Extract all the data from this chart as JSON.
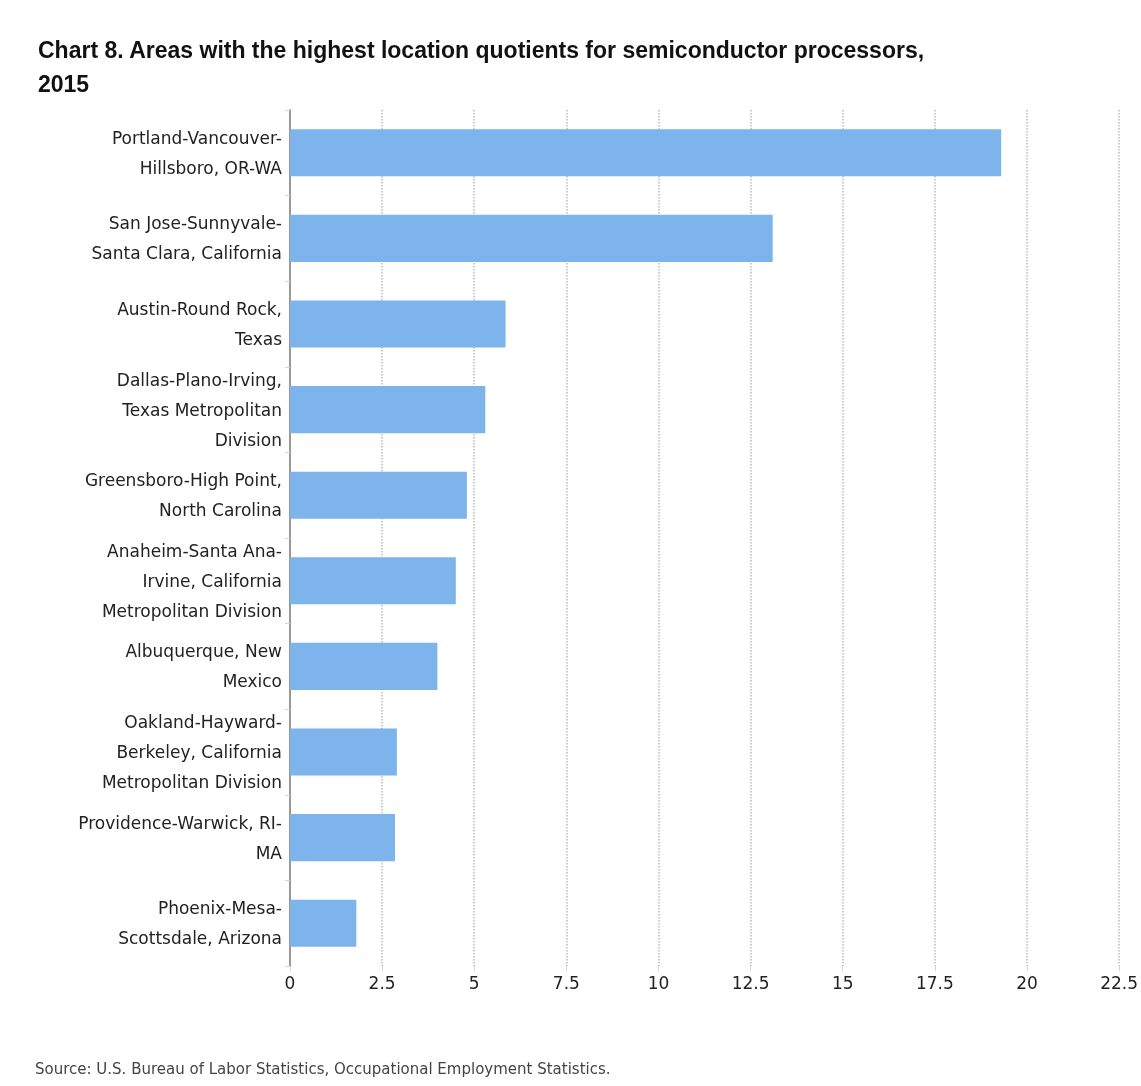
{
  "chart_data": {
    "type": "bar",
    "orientation": "horizontal",
    "title": "Chart 8. Areas with the highest location quotients for semiconductor processors, 2015",
    "categories": [
      "Portland-Vancouver-Hillsboro, OR-WA",
      "San Jose-Sunnyvale-Santa Clara, California",
      "Austin-Round Rock, Texas",
      "Dallas-Plano-Irving, Texas Metropolitan Division",
      "Greensboro-High Point, North Carolina",
      "Anaheim-Santa Ana-Irvine, California Metropolitan Division",
      "Albuquerque, New Mexico",
      "Oakland-Hayward-Berkeley, California Metropolitan Division",
      "Providence-Warwick, RI-MA",
      "Phoenix-Mesa-Scottsdale, Arizona"
    ],
    "values": [
      19.3,
      13.1,
      5.85,
      5.3,
      4.8,
      4.5,
      4.0,
      2.9,
      2.85,
      1.8
    ],
    "color": "#7cb4eb",
    "xlim": [
      0,
      22.5
    ],
    "xticks": [
      0,
      2.5,
      5,
      7.5,
      10,
      12.5,
      15,
      17.5,
      20,
      22.5
    ],
    "grid": "x",
    "annotations": [
      "Source: U.S. Bureau of Labor Statistics, Occupational Employment Statistics."
    ]
  }
}
